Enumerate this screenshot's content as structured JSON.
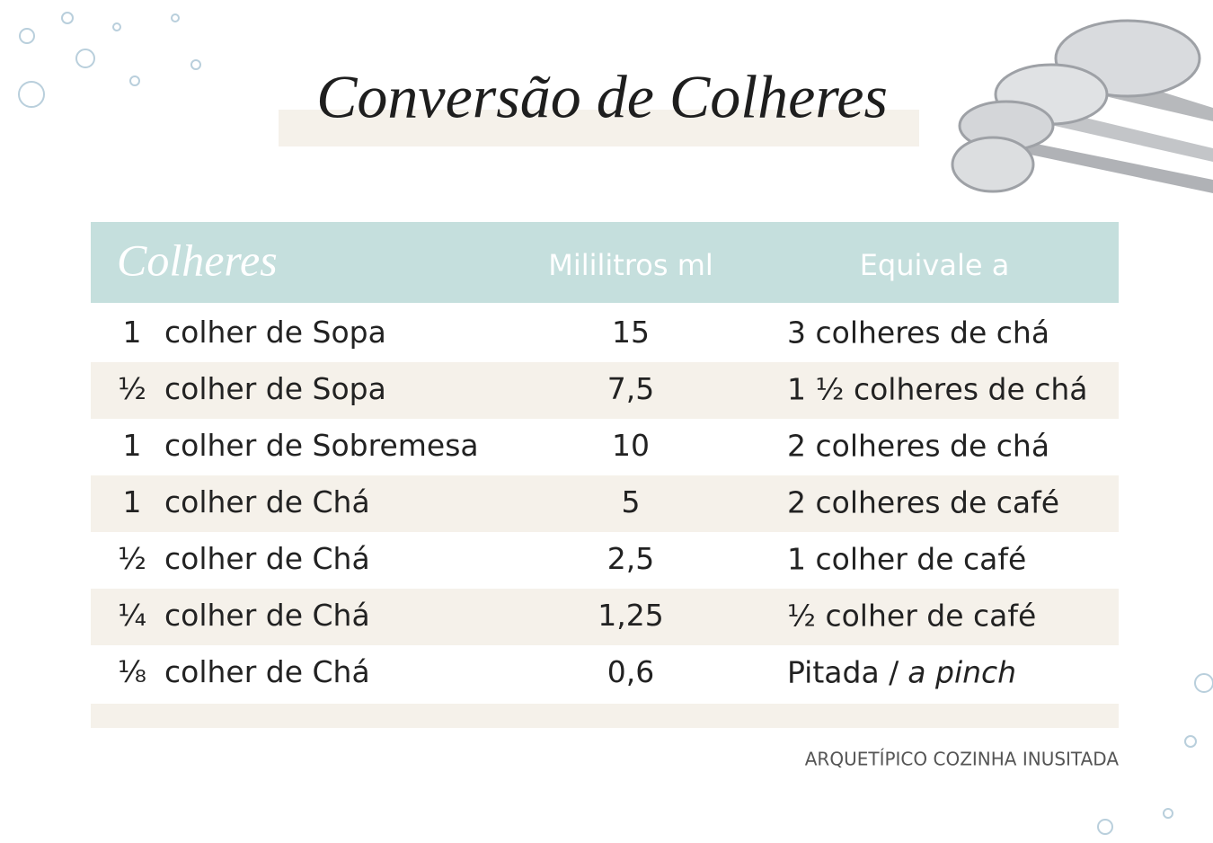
{
  "title": "Conversão de Colheres",
  "table": {
    "header": [
      "Colheres",
      "Mililitros ml",
      "Equivale a"
    ],
    "rows": [
      [
        "1",
        "colher de Sopa",
        "15",
        "3 colheres de chá"
      ],
      [
        "½",
        "colher de Sopa",
        "7,5",
        "1 ½ colheres de chá"
      ],
      [
        "1",
        "colher de Sobremesa",
        "10",
        "2 colheres de chá"
      ],
      [
        "1",
        "colher de Chá",
        "5",
        "2 colheres de café"
      ],
      [
        "½",
        "colher de Chá",
        "2,5",
        "1 colher de café"
      ],
      [
        "¼",
        "colher de Chá",
        "1,25",
        "½  colher de café"
      ],
      [
        "⅛",
        "colher de Chá",
        "0,6",
        "Pitada /",
        "a pinch"
      ]
    ]
  },
  "footer": "ARQUETÍPICO COZINHA INUSITADA"
}
